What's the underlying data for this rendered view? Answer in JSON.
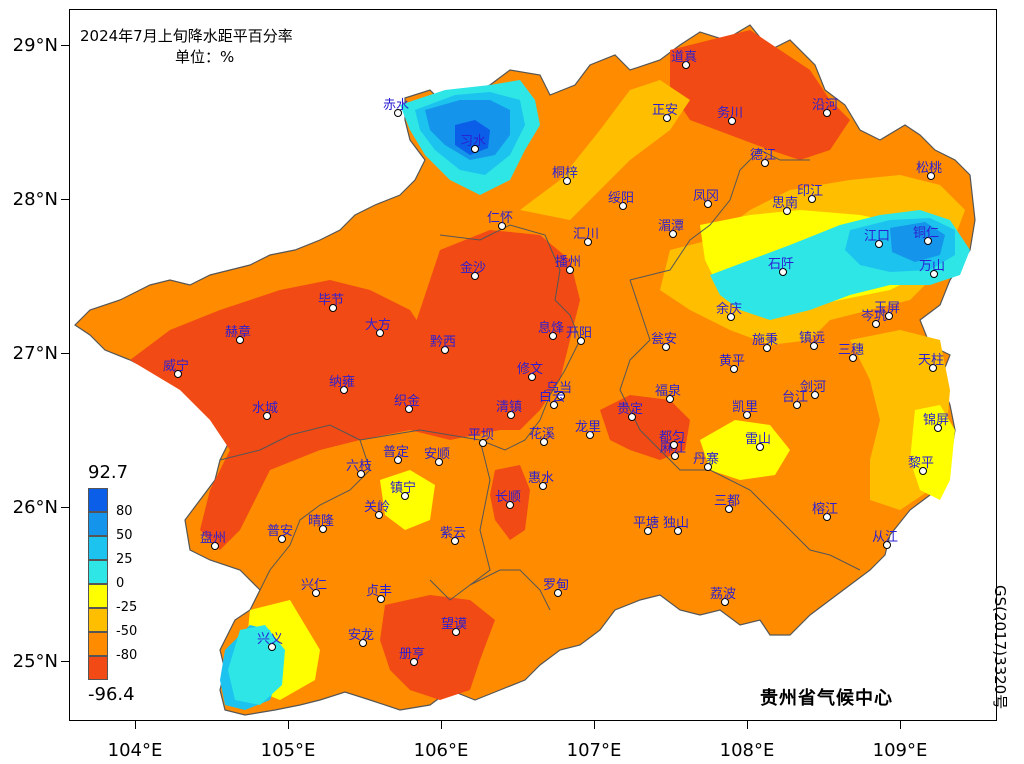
{
  "title": "2024年7月上旬降水距平百分率",
  "unit": "单位：%",
  "credit": "贵州省气候中心",
  "approval": "GS(2017)3320号",
  "axes": {
    "y_labels": [
      "29°N",
      "28°N",
      "27°N",
      "26°N",
      "25°N"
    ],
    "x_labels": [
      "104°E",
      "105°E",
      "106°E",
      "107°E",
      "108°E",
      "109°E"
    ]
  },
  "legend": {
    "max": "92.7",
    "min": "-96.4",
    "levels": [
      {
        "label": "80",
        "color": "#0a5ee8"
      },
      {
        "label": "50",
        "color": "#1494ea"
      },
      {
        "label": "25",
        "color": "#1cc3ee"
      },
      {
        "label": "0",
        "color": "#2ee6e6"
      },
      {
        "label": "-25",
        "color": "#ffff00"
      },
      {
        "label": "-50",
        "color": "#ffbf00"
      },
      {
        "label": "-80",
        "color": "#ff8c00"
      },
      {
        "label": "",
        "color": "#f24a14"
      }
    ]
  },
  "stations": [
    "道真",
    "正安",
    "务川",
    "沿河",
    "赤水",
    "习水",
    "桐梓",
    "德江",
    "松桃",
    "绥阳",
    "凤冈",
    "印江",
    "思南",
    "仁怀",
    "汇川",
    "湄潭",
    "江口",
    "铜仁",
    "石阡",
    "万山",
    "金沙",
    "播州",
    "毕节",
    "大方",
    "息烽",
    "开阳",
    "瓮安",
    "余庆",
    "岑巩",
    "玉屏",
    "赫章",
    "黔西",
    "施秉",
    "镇远",
    "三穗",
    "威宁",
    "修文",
    "黄平",
    "天柱",
    "纳雍",
    "乌当",
    "福泉",
    "凯里",
    "剑河",
    "水城",
    "清镇",
    "织金",
    "白云",
    "贵定",
    "台江",
    "锦屏",
    "平坝",
    "花溪",
    "龙里",
    "麻江",
    "雷山",
    "六枝",
    "普定",
    "安顺",
    "丹寨",
    "黎平",
    "镇宁",
    "关岭",
    "长顺",
    "惠水",
    "都匀",
    "三都",
    "榕江",
    "盘州",
    "普安",
    "晴隆",
    "紫云",
    "平塘",
    "独山",
    "从江",
    "兴仁",
    "贞丰",
    "罗甸",
    "荔波",
    "兴义",
    "安龙",
    "望谟",
    "册亨"
  ]
}
